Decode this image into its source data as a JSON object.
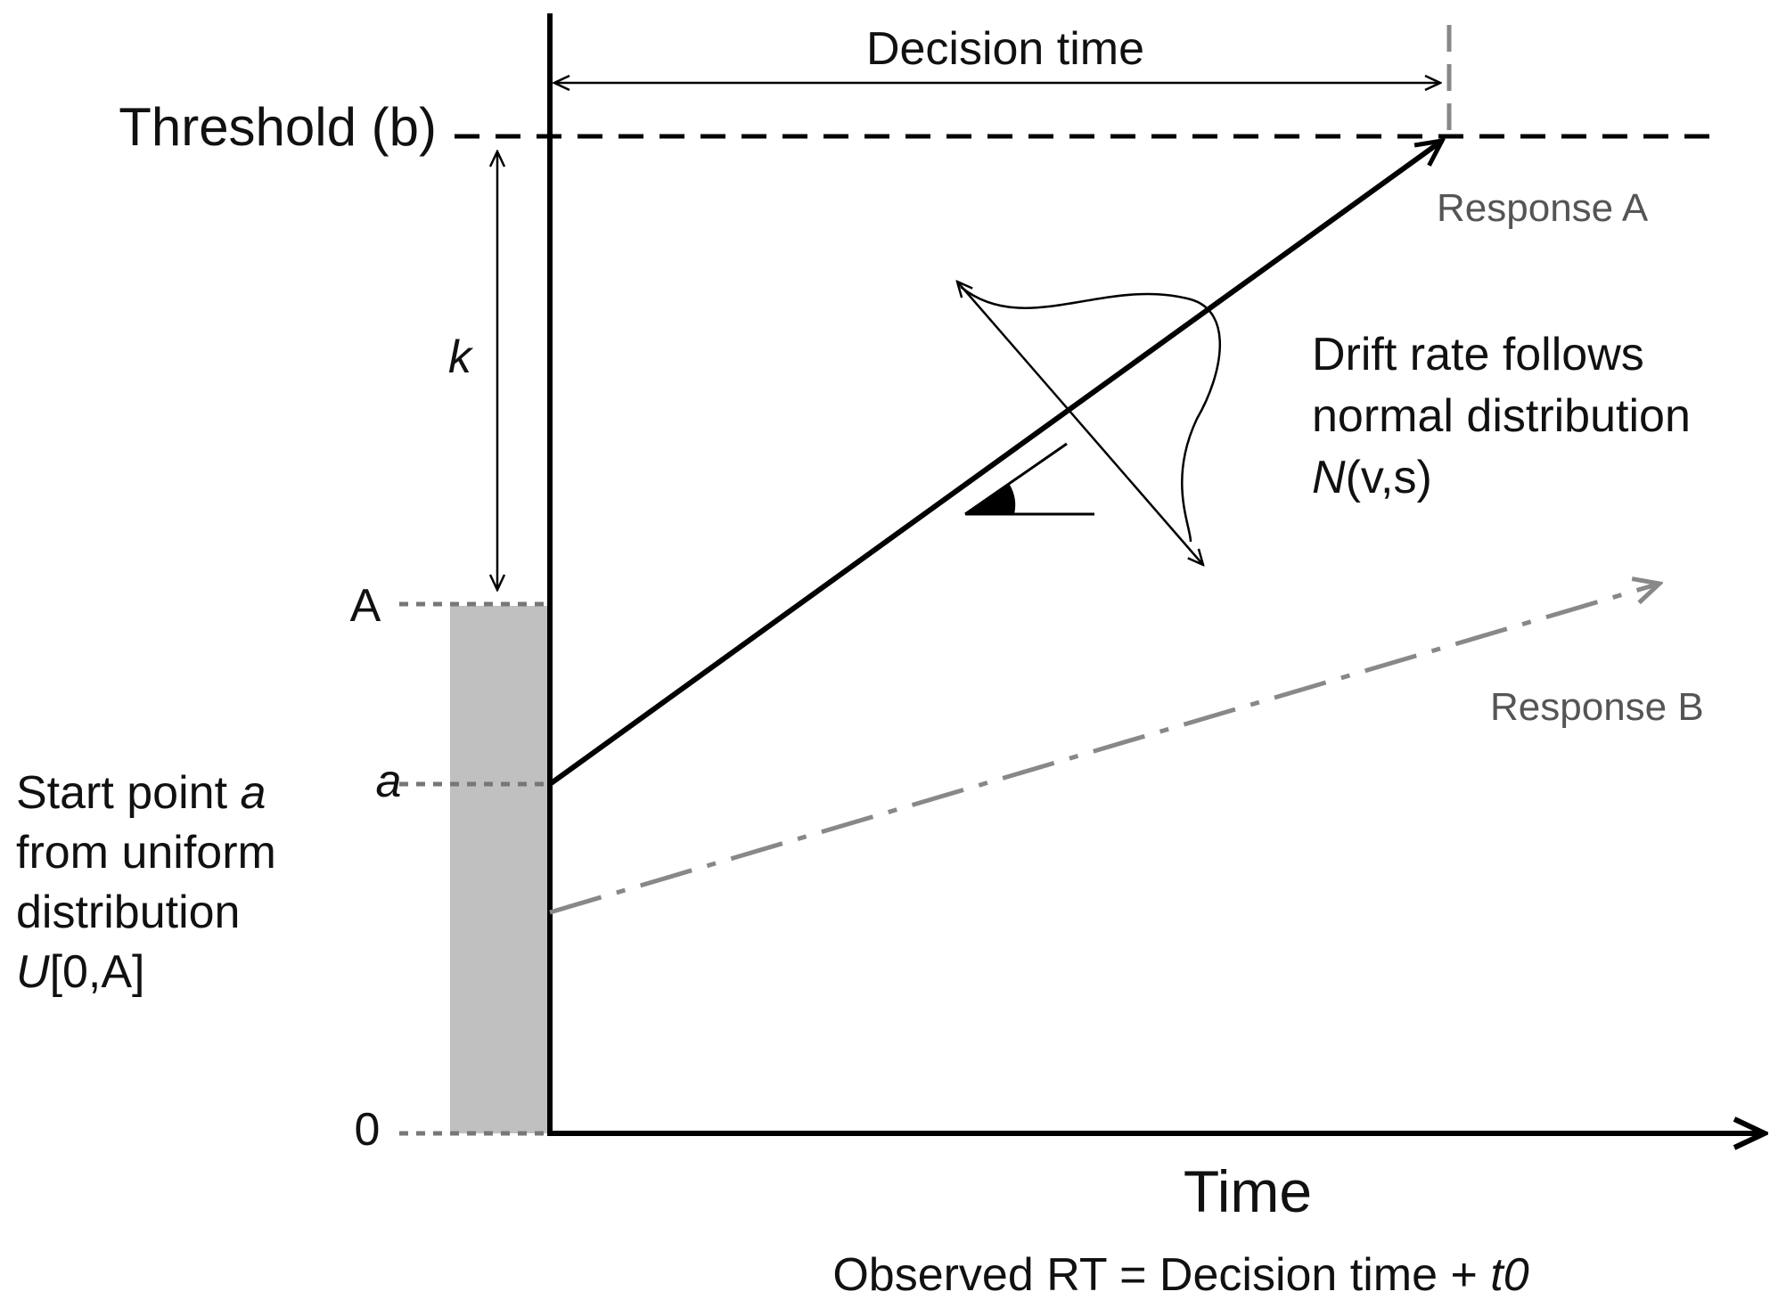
{
  "labels": {
    "decision_time": "Decision time",
    "threshold": "Threshold (b)",
    "k": "k",
    "A_level": "A",
    "a_level": "a",
    "zero_level": "0",
    "response_a": "Response A",
    "response_b": "Response B",
    "drift_line1": "Drift rate follows",
    "drift_line2": "normal distribution",
    "drift_line3_italic": "N",
    "drift_line3_rest": "(v,s)",
    "start_line1_text": "Start point ",
    "start_line1_italic": "a",
    "start_line2": "from uniform",
    "start_line3": "distribution",
    "start_line4_italic": "U",
    "start_line4_rest": "[0,A]",
    "time_axis": "Time",
    "rt_formula_text": "Observed RT = Decision time + ",
    "rt_formula_italic": "t0"
  },
  "colors": {
    "main": "#000000",
    "secondary": "#888888",
    "shade": "#c0c0c0",
    "dotted": "#777777"
  }
}
